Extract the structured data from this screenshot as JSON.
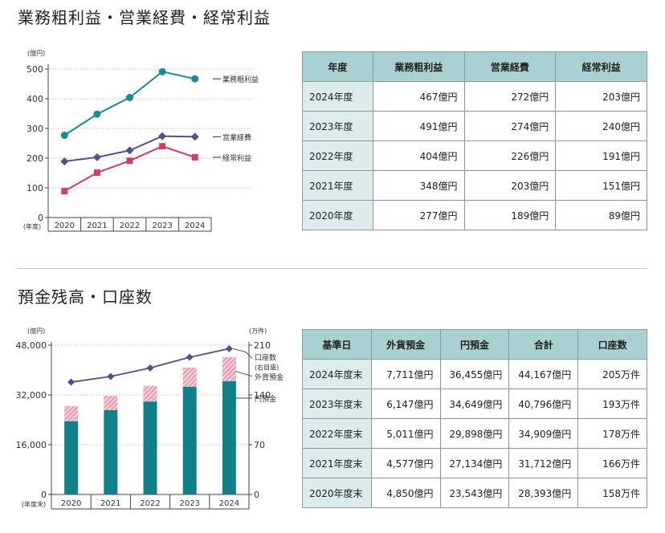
{
  "section1": {
    "title": "業務粗利益・営業経費・経常利益",
    "table": {
      "headers": [
        "年度",
        "業務粗利益",
        "営業経費",
        "経常利益"
      ],
      "rows": [
        [
          "2024年度",
          "467億円",
          "272億円",
          "203億円"
        ],
        [
          "2023年度",
          "491億円",
          "274億円",
          "240億円"
        ],
        [
          "2022年度",
          "404億円",
          "226億円",
          "191億円"
        ],
        [
          "2021年度",
          "348億円",
          "203億円",
          "151億円"
        ],
        [
          "2020年度",
          "277億円",
          "189億円",
          "89億円"
        ]
      ]
    }
  },
  "section2": {
    "title": "預金残高・口座数",
    "table": {
      "headers": [
        "基準日",
        "外貨預金",
        "円預金",
        "合計",
        "口座数"
      ],
      "rows": [
        [
          "2024年度末",
          "7,711億円",
          "36,455億円",
          "44,167億円",
          "205万件"
        ],
        [
          "2023年度末",
          "6,147億円",
          "34,649億円",
          "40,796億円",
          "193万件"
        ],
        [
          "2022年度末",
          "5,011億円",
          "29,898億円",
          "34,909億円",
          "178万件"
        ],
        [
          "2021年度末",
          "4,577億円",
          "27,134億円",
          "31,712億円",
          "166万件"
        ],
        [
          "2020年度末",
          "4,850億円",
          "23,543億円",
          "28,393億円",
          "158万件"
        ]
      ]
    }
  },
  "chart_data": [
    {
      "type": "line",
      "title": "業務粗利益・営業経費・経常利益",
      "unit_label": "(億円)",
      "xlabel": "(年度)",
      "categories": [
        "2020",
        "2021",
        "2022",
        "2023",
        "2024"
      ],
      "ylim": [
        0,
        500
      ],
      "yticks": [
        0,
        100,
        200,
        300,
        400,
        500
      ],
      "series": [
        {
          "name": "業務粗利益",
          "values": [
            277,
            348,
            404,
            491,
            467
          ],
          "color": "#1a8c95",
          "marker": "circle"
        },
        {
          "name": "営業経費",
          "values": [
            189,
            203,
            226,
            274,
            272
          ],
          "color": "#5a4c8e",
          "marker": "diamond"
        },
        {
          "name": "経常利益",
          "values": [
            89,
            151,
            191,
            240,
            203
          ],
          "color": "#cf3d63",
          "marker": "square"
        }
      ],
      "legend": "right-inline"
    },
    {
      "type": "bar",
      "stacked": true,
      "title": "預金残高・口座数",
      "unit_label": "(億円)",
      "unit_label_right": "(万件)",
      "xlabel": "(年度末)",
      "categories": [
        "2020",
        "2021",
        "2022",
        "2023",
        "2024"
      ],
      "ylim": [
        0,
        48000
      ],
      "yticks": [
        0,
        16000,
        32000,
        48000
      ],
      "ytick_labels": [
        "0",
        "16,000",
        "32,000",
        "48,000"
      ],
      "y2lim": [
        0,
        210
      ],
      "y2ticks": [
        0,
        70,
        140,
        210
      ],
      "series": [
        {
          "name": "円預金",
          "values": [
            23543,
            27134,
            29898,
            34649,
            36455
          ],
          "color": "#12808a"
        },
        {
          "name": "外貨預金",
          "values": [
            4850,
            4577,
            5011,
            6147,
            7711
          ],
          "color": "#e8a0b0"
        },
        {
          "name": "口座数",
          "axis": "right",
          "values": [
            158,
            166,
            178,
            193,
            205
          ],
          "color": "#5a4c8e",
          "type": "line"
        }
      ],
      "legend_labels": {
        "accounts_line1": "口座数",
        "accounts_line2": "(右目盛)"
      }
    }
  ]
}
